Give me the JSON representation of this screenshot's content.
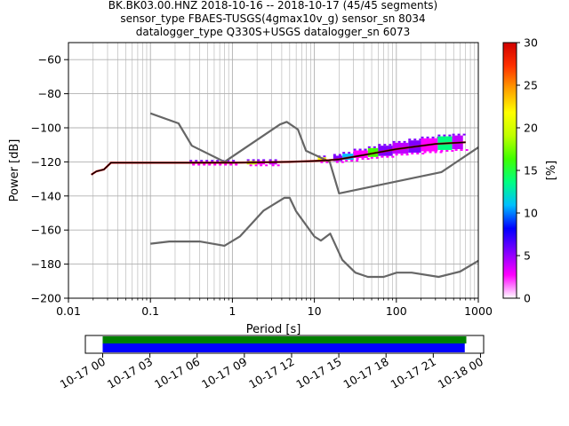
{
  "chart_data": {
    "type": "ppsd",
    "title_lines": [
      "BK.BK03.00.HNZ   2018-10-16 -- 2018-10-17  (45/45 segments)",
      "sensor_type FBAES-TUSGS(4gmax10v_g) sensor_sn 8034",
      "datalogger_type Q330S+USGS datalogger_sn 6073"
    ],
    "xlabel": "Period [s]",
    "ylabel": "Power [dB]",
    "xscale": "log",
    "xlim": [
      0.01,
      1000
    ],
    "ylim": [
      -200,
      -50
    ],
    "xticks": [
      {
        "v": 0.01,
        "t": "0.01"
      },
      {
        "v": 0.1,
        "t": "0.1"
      },
      {
        "v": 1,
        "t": "1"
      },
      {
        "v": 10,
        "t": "10"
      },
      {
        "v": 100,
        "t": "100"
      },
      {
        "v": 1000,
        "t": "1000"
      }
    ],
    "yticks": [
      {
        "v": -200,
        "t": "−200"
      },
      {
        "v": -180,
        "t": "−180"
      },
      {
        "v": -160,
        "t": "−160"
      },
      {
        "v": -140,
        "t": "−140"
      },
      {
        "v": -120,
        "t": "−120"
      },
      {
        "v": -100,
        "t": "−100"
      },
      {
        "v": -80,
        "t": "−80"
      },
      {
        "v": -60,
        "t": "−60"
      }
    ],
    "grid": true,
    "colorbar": {
      "label": "[%]",
      "min": 0,
      "max": 30,
      "ticks": [
        {
          "v": 0,
          "t": "0"
        },
        {
          "v": 5,
          "t": "5"
        },
        {
          "v": 10,
          "t": "10"
        },
        {
          "v": 15,
          "t": "15"
        },
        {
          "v": 20,
          "t": "20"
        },
        {
          "v": 25,
          "t": "25"
        },
        {
          "v": 30,
          "t": "30"
        }
      ],
      "colors": [
        "#ffffff",
        "#ff00ff",
        "#8000ff",
        "#0000ff",
        "#00bfff",
        "#00ff80",
        "#40ff00",
        "#c0ff00",
        "#ffff00",
        "#ffa000",
        "#ff3000",
        "#d00000"
      ]
    },
    "nhnm": {
      "name": "NHNM",
      "color": "#666666",
      "x": [
        0.1,
        0.22,
        0.32,
        0.8,
        3.8,
        4.6,
        6.3,
        7.9,
        15.4,
        20,
        354.8,
        1000
      ],
      "y": [
        -91.5,
        -97.4,
        -110.5,
        -120,
        -98,
        -96.5,
        -101,
        -113.5,
        -120,
        -138.5,
        -126,
        -111.5
      ]
    },
    "nlnm": {
      "name": "NLNM",
      "color": "#666666",
      "x": [
        0.1,
        0.17,
        0.4,
        0.8,
        1.24,
        2.4,
        4.3,
        5,
        6,
        10,
        12,
        15.6,
        21.9,
        31.6,
        45,
        70,
        101,
        154,
        328,
        600,
        1000
      ],
      "y": [
        -168,
        -166.7,
        -166.7,
        -169.2,
        -163.7,
        -148.6,
        -141.1,
        -141.1,
        -149,
        -163.8,
        -166.2,
        -162.1,
        -177.5,
        -185,
        -187.5,
        -187.5,
        -185,
        -185,
        -187.5,
        -184.4,
        -178
      ]
    },
    "mean_curve": {
      "color": "#000000",
      "x": [
        0.019,
        0.022,
        0.027,
        0.033,
        0.1,
        1,
        5,
        10,
        15,
        20,
        40,
        100,
        300,
        700
      ],
      "y": [
        -127.5,
        -125.5,
        -124.5,
        -120.5,
        -120.5,
        -120.5,
        -120,
        -119.5,
        -119,
        -118.5,
        -116,
        -112.5,
        -109.5,
        -108.5
      ]
    },
    "ppsd_bands": [
      {
        "x0": 0.3,
        "x1": 1.0,
        "y": -120.5,
        "hw": 0.6,
        "color": "#ff5000"
      },
      {
        "x0": 1.5,
        "x1": 2.0,
        "y": -120.5,
        "hw": 1.0,
        "color": "#c0ff00"
      },
      {
        "x0": 2.0,
        "x1": 2.5,
        "y": -120.5,
        "hw": 1.0,
        "color": "#ff00ff"
      },
      {
        "x0": 2.8,
        "x1": 3.5,
        "y": -120.5,
        "hw": 1.0,
        "color": "#c000ff"
      },
      {
        "x0": 11,
        "x1": 14,
        "y": -118.5,
        "hw": 1.2,
        "color": "#ffff00"
      },
      {
        "x0": 17,
        "x1": 22,
        "y": -118,
        "hw": 1.6,
        "color": "#8000ff"
      },
      {
        "x0": 22,
        "x1": 30,
        "y": -117,
        "hw": 1.8,
        "color": "#00bfff"
      },
      {
        "x0": 30,
        "x1": 45,
        "y": -115.5,
        "hw": 2.2,
        "color": "#ff00ff"
      },
      {
        "x0": 45,
        "x1": 60,
        "y": -114.5,
        "hw": 2.6,
        "color": "#40ff00"
      },
      {
        "x0": 60,
        "x1": 90,
        "y": -113.5,
        "hw": 3.0,
        "color": "#8000ff"
      },
      {
        "x0": 90,
        "x1": 140,
        "y": -112,
        "hw": 3.2,
        "color": "#c000ff"
      },
      {
        "x0": 140,
        "x1": 200,
        "y": -111,
        "hw": 3.6,
        "color": "#8000ff"
      },
      {
        "x0": 200,
        "x1": 320,
        "y": -110,
        "hw": 3.8,
        "color": "#ff00ff"
      },
      {
        "x0": 320,
        "x1": 480,
        "y": -109,
        "hw": 4.0,
        "color": "#00ff80"
      },
      {
        "x0": 480,
        "x1": 650,
        "y": -108.5,
        "hw": 4.0,
        "color": "#c000ff"
      }
    ],
    "timeline": {
      "xticks": [
        {
          "v": 0,
          "t": "10-17 00"
        },
        {
          "v": 3,
          "t": "10-17 03"
        },
        {
          "v": 6,
          "t": "10-17 06"
        },
        {
          "v": 9,
          "t": "10-17 09"
        },
        {
          "v": 12,
          "t": "10-17 12"
        },
        {
          "v": 15,
          "t": "10-17 15"
        },
        {
          "v": 18,
          "t": "10-17 18"
        },
        {
          "v": 21,
          "t": "10-17 21"
        },
        {
          "v": 24,
          "t": "10-18 00"
        }
      ],
      "xlim": [
        -1.1,
        24.2
      ],
      "coverage": [
        {
          "start": 0,
          "end": 23.1,
          "color": "#008000"
        }
      ],
      "segments": [
        {
          "start": 0,
          "end": 23.0,
          "color": "#0000ff"
        }
      ]
    }
  }
}
